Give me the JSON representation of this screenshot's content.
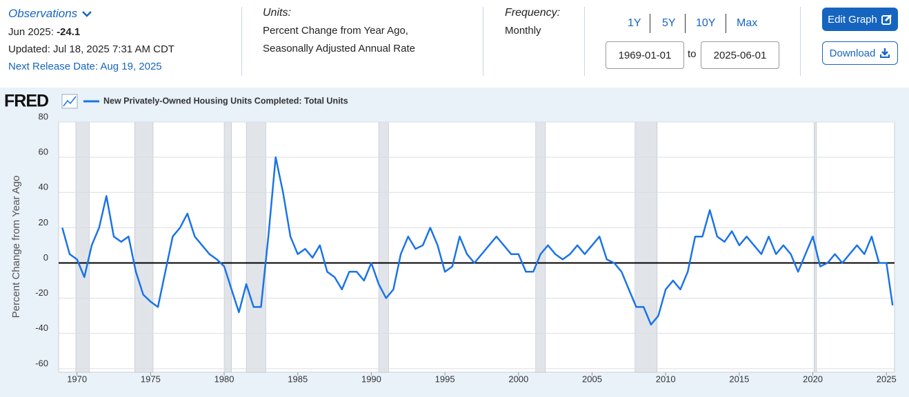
{
  "header": {
    "observations": "Observations",
    "obs_date": "Jun 2025:",
    "obs_value": "-24.1",
    "updated": "Updated: Jul 18, 2025 7:31 AM CDT",
    "next_release": "Next Release Date: Aug 19, 2025",
    "units_label": "Units:",
    "units": [
      "Percent Change from Year Ago,",
      "Seasonally Adjusted Annual Rate"
    ],
    "frequency_label": "Frequency:",
    "frequency": "Monthly",
    "ranges": [
      "1Y",
      "5Y",
      "10Y",
      "Max"
    ],
    "start_date": "1969-01-01",
    "to": "to",
    "end_date": "2025-06-01",
    "edit_graph": "Edit Graph",
    "download": "Download",
    "logo": "FRED"
  },
  "chart_data": {
    "type": "line",
    "ylabel": "Percent Change from Year Ago",
    "x": [
      1969,
      1969.5,
      1970,
      1970.5,
      1971,
      1971.5,
      1972,
      1972.5,
      1973,
      1973.5,
      1974,
      1974.5,
      1975,
      1975.5,
      1976,
      1976.5,
      1977,
      1977.5,
      1978,
      1978.5,
      1979,
      1979.5,
      1980,
      1980.5,
      1981,
      1981.5,
      1982,
      1982.5,
      1983,
      1983.5,
      1984,
      1984.5,
      1985,
      1985.5,
      1986,
      1986.5,
      1987,
      1987.5,
      1988,
      1988.5,
      1989,
      1989.5,
      1990,
      1990.5,
      1991,
      1991.5,
      1992,
      1992.5,
      1993,
      1993.5,
      1994,
      1994.5,
      1995,
      1995.5,
      1996,
      1996.5,
      1997,
      1997.5,
      1998,
      1998.5,
      1999,
      1999.5,
      2000,
      2000.5,
      2001,
      2001.5,
      2002,
      2002.5,
      2003,
      2003.5,
      2004,
      2004.5,
      2005,
      2005.5,
      2006,
      2006.5,
      2007,
      2007.5,
      2008,
      2008.5,
      2009,
      2009.5,
      2010,
      2010.5,
      2011,
      2011.5,
      2012,
      2012.5,
      2013,
      2013.5,
      2014,
      2014.5,
      2015,
      2015.5,
      2016,
      2016.5,
      2017,
      2017.5,
      2018,
      2018.5,
      2019,
      2019.5,
      2020,
      2020.5,
      2021,
      2021.5,
      2022,
      2022.5,
      2023,
      2023.5,
      2024,
      2024.5,
      2025,
      2025.42
    ],
    "series": [
      {
        "name": "New Privately-Owned Housing Units Completed: Total Units",
        "color": "#1a73e8",
        "values": [
          20,
          5,
          2,
          -8,
          10,
          20,
          38,
          15,
          12,
          15,
          -5,
          -18,
          -22,
          -25,
          -5,
          15,
          20,
          28,
          15,
          10,
          5,
          2,
          -2,
          -15,
          -28,
          -12,
          -25,
          -25,
          15,
          60,
          40,
          15,
          5,
          8,
          3,
          10,
          -5,
          -8,
          -15,
          -5,
          -5,
          -10,
          0,
          -12,
          -20,
          -15,
          5,
          15,
          8,
          10,
          20,
          10,
          -5,
          -2,
          15,
          5,
          0,
          5,
          10,
          15,
          10,
          5,
          5,
          -5,
          -5,
          5,
          10,
          5,
          2,
          5,
          10,
          5,
          10,
          15,
          2,
          0,
          -5,
          -15,
          -25,
          -25,
          -35,
          -30,
          -15,
          -10,
          -15,
          -5,
          15,
          15,
          30,
          15,
          12,
          18,
          10,
          15,
          10,
          5,
          15,
          5,
          10,
          5,
          -5,
          5,
          15,
          -2,
          0,
          5,
          0,
          5,
          10,
          5,
          15,
          0,
          0,
          -24.1
        ]
      }
    ],
    "recessions": [
      [
        1969.92,
        1970.83
      ],
      [
        1973.92,
        1975.17
      ],
      [
        1980.0,
        1980.5
      ],
      [
        1981.5,
        1982.83
      ],
      [
        1990.5,
        1991.17
      ],
      [
        2001.17,
        2001.83
      ],
      [
        2007.92,
        2009.42
      ],
      [
        2020.08,
        2020.25
      ]
    ],
    "xlim": [
      1968.75,
      2025.55
    ],
    "xticks": [
      1970,
      1975,
      1980,
      1985,
      1990,
      1995,
      2000,
      2005,
      2010,
      2015,
      2020,
      2025
    ],
    "ylim": [
      -62,
      80
    ],
    "yticks": [
      -60,
      -40,
      -20,
      0,
      20,
      40,
      60,
      80
    ],
    "grid": true
  }
}
